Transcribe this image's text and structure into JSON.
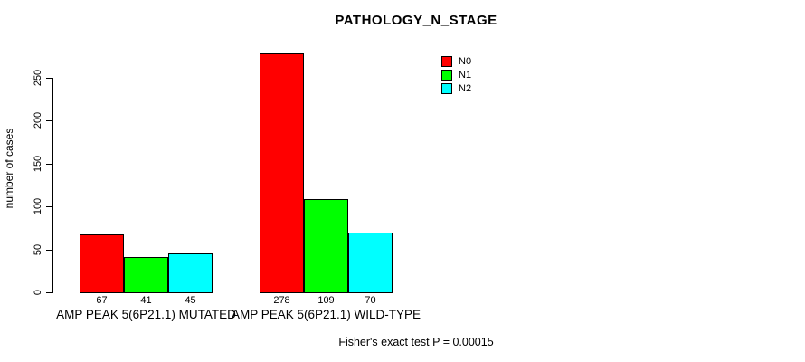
{
  "chart_data": {
    "type": "bar",
    "title": "PATHOLOGY_N_STAGE",
    "xlabel": "",
    "ylabel": "number of cases",
    "ylim": [
      0,
      280
    ],
    "yticks": [
      0,
      50,
      100,
      150,
      200,
      250
    ],
    "grid": false,
    "legend_position": "top-right",
    "categories": [
      "AMP PEAK 5(6P21.1) MUTATED",
      "AMP PEAK 5(6P21.1) WILD-TYPE"
    ],
    "series": [
      {
        "name": "N0",
        "color": "#ff0000",
        "values": [
          67,
          278
        ]
      },
      {
        "name": "N1",
        "color": "#00ff00",
        "values": [
          41,
          109
        ]
      },
      {
        "name": "N2",
        "color": "#00ffff",
        "values": [
          45,
          70
        ]
      }
    ],
    "bar_value_labels": [
      [
        67,
        41,
        45
      ],
      [
        278,
        109,
        70
      ]
    ],
    "annotation": "Fisher's exact test P = 0.00015"
  },
  "colors": {
    "background": "#ffffff",
    "axis": "#000000",
    "text": "#000000"
  }
}
